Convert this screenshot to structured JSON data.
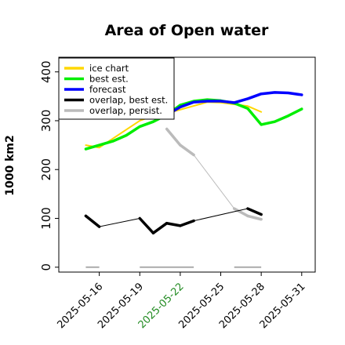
{
  "chart_data": {
    "type": "line",
    "title": "Area of Open water",
    "ylabel": "1000 km2",
    "xlabel": "",
    "ylim": [
      -10,
      430
    ],
    "xlim": [
      "2025-05-13",
      "2025-06-01"
    ],
    "yticks": [
      0,
      100,
      200,
      300,
      400
    ],
    "xticks": [
      "2025-05-16",
      "2025-05-19",
      "2025-05-22",
      "2025-05-25",
      "2025-05-28",
      "2025-05-31"
    ],
    "highlight_tick": "2025-05-22",
    "highlight_color": "#228b22",
    "grid": false,
    "legend_position": "top-left",
    "series": [
      {
        "name": "ice chart",
        "color": "#ffd700",
        "thin": true,
        "points": [
          [
            "2025-05-15",
            250
          ],
          [
            "2025-05-16",
            245
          ],
          [
            "2025-05-19",
            300
          ],
          [
            "2025-05-20",
            310
          ],
          [
            "2025-05-21",
            315
          ],
          [
            "2025-05-24",
            338
          ],
          [
            "2025-05-25",
            337
          ],
          [
            "2025-05-27",
            330
          ],
          [
            "2025-05-28",
            318
          ]
        ]
      },
      {
        "name": "best est.",
        "color": "#00ee00",
        "points": [
          [
            "2025-05-15",
            242
          ],
          [
            "2025-05-16",
            250
          ],
          [
            "2025-05-17",
            258
          ],
          [
            "2025-05-18",
            270
          ],
          [
            "2025-05-19",
            288
          ],
          [
            "2025-05-20",
            298
          ],
          [
            "2025-05-21",
            312
          ],
          [
            "2025-05-22",
            332
          ],
          [
            "2025-05-23",
            340
          ],
          [
            "2025-05-24",
            343
          ],
          [
            "2025-05-25",
            341
          ],
          [
            "2025-05-26",
            336
          ],
          [
            "2025-05-27",
            325
          ],
          [
            "2025-05-28",
            292
          ],
          [
            "2025-05-29",
            298
          ],
          [
            "2025-05-30",
            310
          ],
          [
            "2025-05-31",
            324
          ]
        ]
      },
      {
        "name": "forecast",
        "color": "#0000ff",
        "points": [
          [
            "2025-05-21",
            312
          ],
          [
            "2025-05-22",
            328
          ],
          [
            "2025-05-23",
            338
          ],
          [
            "2025-05-24",
            340
          ],
          [
            "2025-05-25",
            340
          ],
          [
            "2025-05-26",
            337
          ],
          [
            "2025-05-27",
            345
          ],
          [
            "2025-05-28",
            355
          ],
          [
            "2025-05-29",
            358
          ],
          [
            "2025-05-30",
            357
          ],
          [
            "2025-05-31",
            353
          ]
        ]
      },
      {
        "name": "overlap, best est.",
        "color": "#000000",
        "points": [
          [
            "2025-05-15",
            105
          ],
          [
            "2025-05-16",
            83
          ],
          [
            "2025-05-19",
            100
          ],
          [
            "2025-05-20",
            70
          ],
          [
            "2025-05-21",
            90
          ],
          [
            "2025-05-22",
            85
          ],
          [
            "2025-05-23",
            95
          ],
          [
            "2025-05-27",
            120
          ],
          [
            "2025-05-28",
            108
          ]
        ],
        "bold_segments": [
          [
            0,
            1
          ],
          [
            2,
            3
          ],
          [
            3,
            4
          ],
          [
            4,
            5
          ],
          [
            5,
            6
          ],
          [
            7,
            8
          ]
        ]
      },
      {
        "name": "overlap, persist.",
        "color": "#bbbbbb",
        "points": [
          [
            "2025-05-21",
            283
          ],
          [
            "2025-05-22",
            250
          ],
          [
            "2025-05-23",
            230
          ],
          [
            "2025-05-26",
            120
          ],
          [
            "2025-05-27",
            105
          ],
          [
            "2025-05-28",
            98
          ]
        ],
        "bold_segments": [
          [
            0,
            1
          ],
          [
            1,
            2
          ],
          [
            3,
            4
          ],
          [
            4,
            5
          ]
        ]
      },
      {
        "name": "",
        "color": "#aaaaaa",
        "baseline": true,
        "segments": [
          [
            [
              "2025-05-15",
              0
            ],
            [
              "2025-05-16",
              0
            ]
          ],
          [
            [
              "2025-05-19",
              0
            ],
            [
              "2025-05-23",
              0
            ]
          ],
          [
            [
              "2025-05-26",
              0
            ],
            [
              "2025-05-28",
              0
            ]
          ]
        ]
      }
    ]
  }
}
